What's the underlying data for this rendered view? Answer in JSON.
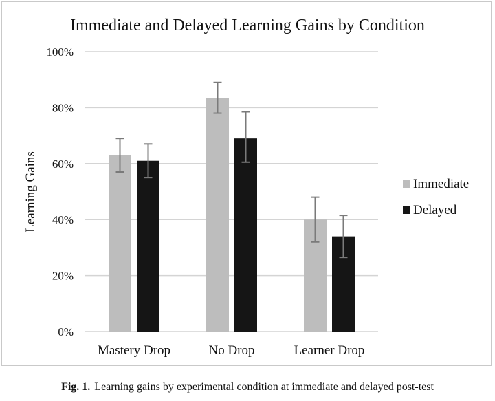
{
  "chart_data": {
    "type": "bar",
    "title": "Immediate and Delayed Learning Gains by Condition",
    "xlabel": "",
    "ylabel": "Learning Gains",
    "ylim": [
      0,
      100
    ],
    "yticks": [
      0,
      20,
      40,
      60,
      80,
      100
    ],
    "ytick_labels": [
      "0%",
      "20%",
      "40%",
      "60%",
      "80%",
      "100%"
    ],
    "grid": true,
    "legend_position": "right",
    "categories": [
      "Mastery Drop",
      "No Drop",
      "Learner Drop"
    ],
    "series": [
      {
        "name": "Immediate",
        "color": "#bdbdbd",
        "values": [
          63,
          83.5,
          40
        ],
        "error_low": [
          57,
          78,
          32
        ],
        "error_high": [
          69,
          89,
          48
        ]
      },
      {
        "name": "Delayed",
        "color": "#151515",
        "values": [
          61,
          69,
          34
        ],
        "error_low": [
          55,
          60.5,
          26.5
        ],
        "error_high": [
          67,
          78.5,
          41.5
        ]
      }
    ]
  },
  "caption": {
    "label": "Fig. 1.",
    "text": "Learning gains by experimental condition at immediate and delayed post-test"
  }
}
